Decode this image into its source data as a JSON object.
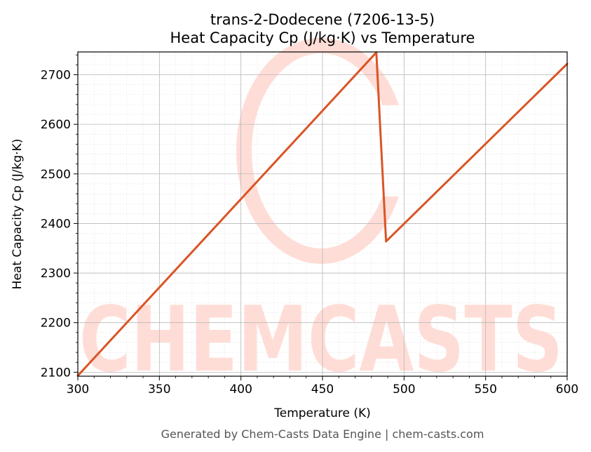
{
  "chart_data": {
    "type": "line",
    "title": "trans-2-Dodecene (7206-13-5)",
    "subtitle": "Heat Capacity Cp (J/kg·K) vs Temperature",
    "xlabel": "Temperature (K)",
    "ylabel": "Heat Capacity Cp (J/kg·K)",
    "xlim": [
      300,
      600
    ],
    "ylim": [
      2092,
      2746
    ],
    "xticks": [
      300,
      350,
      400,
      450,
      500,
      550,
      600
    ],
    "yticks": [
      2100,
      2200,
      2300,
      2400,
      2500,
      2600,
      2700
    ],
    "grid": true,
    "series": [
      {
        "color": "#d95526",
        "x": [
          300,
          483,
          489,
          600
        ],
        "y": [
          2093,
          2745,
          2364,
          2722
        ]
      }
    ]
  },
  "watermark": {
    "letters": [
      "C",
      "H",
      "E",
      "M",
      "C",
      "A",
      "S",
      "T",
      "S"
    ],
    "color": "#ffddd6"
  },
  "footer": "Generated by Chem-Casts Data Engine | chem-casts.com"
}
